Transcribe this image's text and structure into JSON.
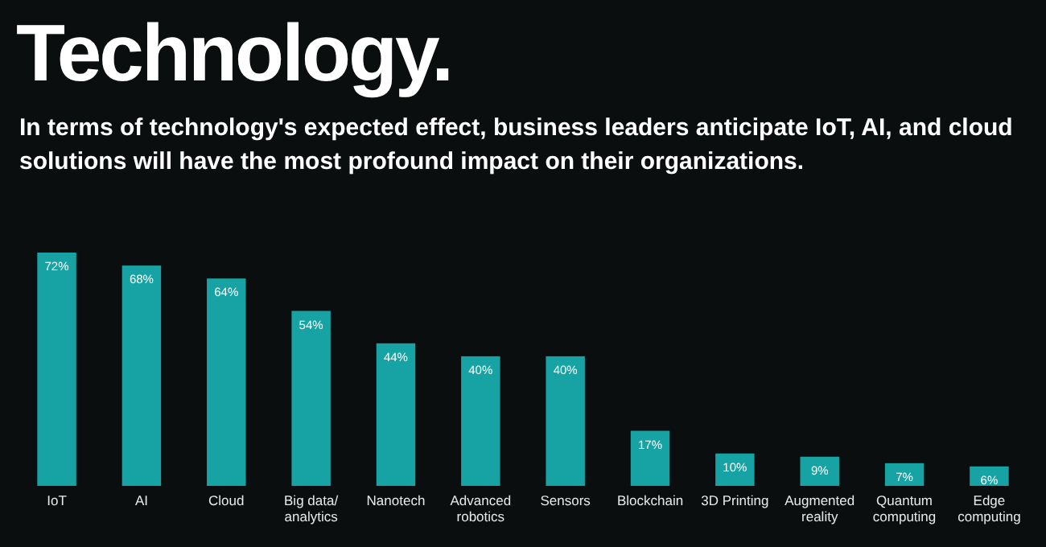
{
  "chart_data": {
    "type": "bar",
    "title": "Technology.",
    "subtitle": "In terms of technology's expected effect, business leaders anticipate IoT, AI, and cloud solutions will have the most profound impact on their organizations.",
    "categories": [
      "IoT",
      "AI",
      "Cloud",
      "Big data/\nanalytics",
      "Nanotech",
      "Advanced\nrobotics",
      "Sensors",
      "Blockchain",
      "3D Printing",
      "Augmented\nreality",
      "Quantum\ncomputing",
      "Edge\ncomputing"
    ],
    "values": [
      72,
      68,
      64,
      54,
      44,
      40,
      40,
      17,
      10,
      9,
      7,
      6
    ],
    "value_labels": [
      "72%",
      "68%",
      "64%",
      "54%",
      "44%",
      "40%",
      "40%",
      "17%",
      "10%",
      "9%",
      "7%",
      "6%"
    ],
    "color": "#17a3a3"
  }
}
